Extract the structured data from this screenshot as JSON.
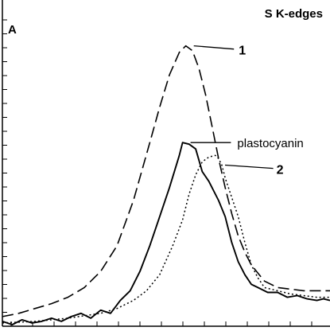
{
  "chart_data": {
    "type": "line",
    "title": "S K-edges",
    "panel_label": "A",
    "xlabel": "",
    "ylabel": "",
    "xlim": [
      0,
      100
    ],
    "ylim": [
      0,
      100
    ],
    "grid": false,
    "series": [
      {
        "name": "1",
        "style": "dashed",
        "x": [
          0,
          5,
          10,
          15,
          20,
          25,
          30,
          35,
          40,
          45,
          48,
          51,
          54,
          56,
          58,
          60,
          62,
          64,
          66,
          68,
          70,
          72,
          74,
          76,
          80,
          84,
          88,
          92,
          96,
          100
        ],
        "y": [
          3,
          4,
          5.5,
          7,
          9,
          12,
          17,
          25,
          39,
          57,
          68,
          78,
          85,
          87,
          85.5,
          80,
          72,
          62,
          52,
          43,
          35,
          28,
          23,
          19,
          14,
          12,
          11.5,
          11,
          11,
          11
        ]
      },
      {
        "name": "plastocyanin",
        "style": "solid",
        "x": [
          0,
          3,
          6,
          9,
          12,
          15,
          18,
          21,
          24,
          27,
          30,
          33,
          36,
          39,
          42,
          45,
          48,
          51,
          54,
          55,
          57,
          59,
          61,
          63,
          66,
          68,
          70,
          72,
          74,
          76,
          78,
          81,
          84,
          87,
          90,
          93,
          96,
          98,
          100
        ],
        "y": [
          1.5,
          0.5,
          2,
          1,
          1.5,
          2.5,
          1.5,
          3,
          4,
          2.5,
          5,
          4,
          8,
          11,
          17,
          25,
          34,
          43,
          53,
          57,
          56.5,
          55,
          48,
          45,
          39,
          34,
          26,
          20,
          16,
          13,
          12,
          10.5,
          10.5,
          9,
          9.5,
          8.5,
          8,
          8.5,
          8
        ]
      },
      {
        "name": "2",
        "style": "dotted",
        "x": [
          0,
          10,
          20,
          30,
          35,
          40,
          44,
          48,
          52,
          55,
          57,
          59,
          61,
          63,
          65,
          66,
          67,
          68,
          70,
          72,
          74,
          76,
          78,
          80,
          84,
          88,
          92,
          96,
          100
        ],
        "y": [
          1,
          1.5,
          2.5,
          4,
          5.5,
          8,
          11,
          16,
          25,
          33,
          41,
          47,
          51,
          52.5,
          53,
          52,
          50,
          46,
          40,
          34,
          26,
          19,
          15,
          12,
          11,
          10,
          9.5,
          9,
          9
        ]
      }
    ],
    "annotations": [
      {
        "text": "1",
        "series": "1",
        "bold": true
      },
      {
        "text": "plastocyanin",
        "series": "plastocyanin",
        "bold": false
      },
      {
        "text": "2",
        "series": "2",
        "bold": true
      }
    ]
  }
}
